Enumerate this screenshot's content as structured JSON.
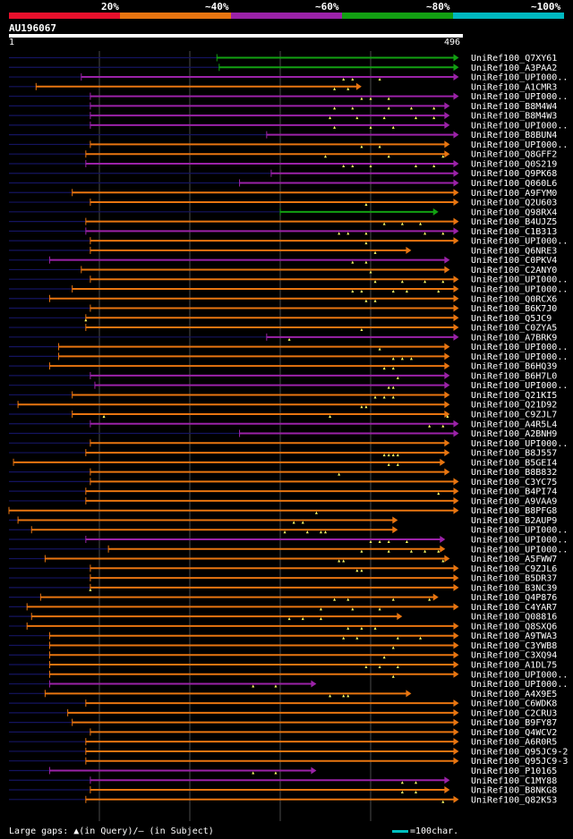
{
  "legend": {
    "labels": [
      "20%",
      "~40%",
      "~60%",
      "~80%",
      "~100%"
    ],
    "colors": [
      "#e8102c",
      "#e87510",
      "#9b22a8",
      "#12a012",
      "#00b8c0"
    ]
  },
  "query": {
    "name": "AU196067",
    "start": "1",
    "end": "496"
  },
  "colors": {
    "orange": "#e87510",
    "purple": "#9b22a8",
    "green": "#12a012",
    "navy": "#141460",
    "grid": "#4a4a4a",
    "gap": "#ffff66"
  },
  "hits": [
    {
      "label": "UniRef100_Q7XY61",
      "color": "green",
      "s": 0.46,
      "e": 0.995,
      "pstart": 0.46,
      "mid": 0.6,
      "dir": "r",
      "gaps": []
    },
    {
      "label": "UniRef100_A3PAA2",
      "color": "green",
      "s": 0.465,
      "e": 0.995,
      "pstart": 0.465,
      "mid": null,
      "dir": "r",
      "gaps": []
    },
    {
      "label": "UniRef100_UPI000..",
      "color": "purple",
      "s": 0.16,
      "e": 0.995,
      "pstart": 0.0,
      "mid": null,
      "dir": "r",
      "gaps": [
        0.74,
        0.76,
        0.82
      ]
    },
    {
      "label": "UniRef100_A1CMR3",
      "color": "orange",
      "s": 0.06,
      "e": 0.78,
      "pstart": 0.06,
      "mid": null,
      "dir": "r",
      "gaps": [
        0.72,
        0.75
      ]
    },
    {
      "label": "UniRef100_UPI000..",
      "color": "purple",
      "s": 0.18,
      "e": 0.995,
      "pstart": 0.0,
      "mid": null,
      "dir": "r",
      "gaps": [
        0.78,
        0.8,
        0.84
      ]
    },
    {
      "label": "UniRef100_B8M4W4",
      "color": "purple",
      "s": 0.18,
      "e": 0.975,
      "pstart": 0.18,
      "mid": null,
      "dir": "r",
      "gaps": [
        0.72,
        0.76,
        0.84,
        0.89,
        0.94
      ]
    },
    {
      "label": "UniRef100_B8M4W3",
      "color": "purple",
      "s": 0.18,
      "e": 0.975,
      "pstart": 0.18,
      "mid": null,
      "dir": "r",
      "gaps": [
        0.71,
        0.77,
        0.83,
        0.9,
        0.94
      ]
    },
    {
      "label": "UniRef100_UPI000..",
      "color": "purple",
      "s": 0.18,
      "e": 0.975,
      "pstart": 0.18,
      "mid": null,
      "dir": "r",
      "gaps": [
        0.72,
        0.8,
        0.85
      ]
    },
    {
      "label": "UniRef100_B8BUN4",
      "color": "purple",
      "s": 0.57,
      "e": 0.995,
      "pstart": 0.57,
      "mid": null,
      "dir": "r",
      "gaps": []
    },
    {
      "label": "UniRef100_UPI000..",
      "color": "orange",
      "s": 0.18,
      "e": 0.975,
      "pstart": 0.0,
      "mid": null,
      "dir": "r",
      "gaps": [
        0.78,
        0.82
      ]
    },
    {
      "label": "UniRef100_Q8GFF2",
      "color": "orange",
      "s": 0.17,
      "e": 0.975,
      "pstart": 0.0,
      "mid": null,
      "dir": "r",
      "gaps": [
        0.7,
        0.84,
        0.96
      ]
    },
    {
      "label": "UniRef100_Q0S219",
      "color": "purple",
      "s": 0.17,
      "e": 0.995,
      "pstart": 0.0,
      "mid": null,
      "dir": "r",
      "gaps": [
        0.74,
        0.76,
        0.8,
        0.9,
        0.94
      ]
    },
    {
      "label": "UniRef100_Q9PK68",
      "color": "purple",
      "s": 0.58,
      "e": 0.995,
      "pstart": 0.58,
      "mid": null,
      "dir": "r",
      "gaps": []
    },
    {
      "label": "UniRef100_Q060L6",
      "color": "purple",
      "s": 0.51,
      "e": 0.995,
      "pstart": 0.51,
      "mid": null,
      "dir": "r",
      "gaps": []
    },
    {
      "label": "UniRef100_A9FYM0",
      "color": "orange",
      "s": 0.14,
      "e": 0.995,
      "pstart": 0.14,
      "mid": null,
      "dir": "r",
      "gaps": []
    },
    {
      "label": "UniRef100_Q2U603",
      "color": "orange",
      "s": 0.18,
      "e": 0.995,
      "pstart": 0.0,
      "mid": null,
      "dir": "r",
      "gaps": [
        0.79
      ]
    },
    {
      "label": "UniRef100_Q98RX4",
      "color": "green",
      "s": 0.6,
      "e": 0.95,
      "pstart": 0.6,
      "mid": null,
      "dir": "r",
      "gaps": []
    },
    {
      "label": "UniRef100_B4UJZ5",
      "color": "orange",
      "s": 0.17,
      "e": 0.995,
      "pstart": 0.0,
      "mid": null,
      "dir": "r",
      "gaps": [
        0.83,
        0.87,
        0.91
      ]
    },
    {
      "label": "UniRef100_C1B313",
      "color": "purple",
      "s": 0.17,
      "e": 0.995,
      "pstart": 0.0,
      "mid": null,
      "dir": "r",
      "gaps": [
        0.73,
        0.75,
        0.79,
        0.92,
        0.96
      ]
    },
    {
      "label": "UniRef100_UPI000..",
      "color": "orange",
      "s": 0.18,
      "e": 0.995,
      "pstart": 0.0,
      "mid": null,
      "dir": "r",
      "gaps": [
        0.79
      ]
    },
    {
      "label": "UniRef100_Q6NRE3",
      "color": "orange",
      "s": 0.18,
      "e": 0.89,
      "pstart": 0.0,
      "mid": null,
      "dir": "r",
      "gaps": [
        0.81
      ]
    },
    {
      "label": "UniRef100_C0PKV4",
      "color": "purple",
      "s": 0.09,
      "e": 0.975,
      "pstart": 0.09,
      "mid": null,
      "dir": "r",
      "gaps": [
        0.76,
        0.79
      ]
    },
    {
      "label": "UniRef100_C2ANY0",
      "color": "orange",
      "s": 0.16,
      "e": 0.975,
      "pstart": 0.0,
      "mid": null,
      "dir": "r",
      "gaps": [
        0.8
      ]
    },
    {
      "label": "UniRef100_UPI000..",
      "color": "orange",
      "s": 0.18,
      "e": 0.995,
      "pstart": 0.0,
      "mid": null,
      "dir": "r",
      "gaps": [
        0.81,
        0.87,
        0.92,
        0.96
      ]
    },
    {
      "label": "UniRef100_UPI000..",
      "color": "orange",
      "s": 0.14,
      "e": 0.995,
      "pstart": 0.0,
      "mid": null,
      "dir": "r",
      "gaps": [
        0.76,
        0.78,
        0.85,
        0.88,
        0.95
      ]
    },
    {
      "label": "UniRef100_Q0RCX6",
      "color": "orange",
      "s": 0.09,
      "e": 0.995,
      "pstart": 0.0,
      "mid": null,
      "dir": "r",
      "gaps": [
        0.79,
        0.81
      ]
    },
    {
      "label": "UniRef100_B6K7J0",
      "color": "orange",
      "s": 0.18,
      "e": 0.995,
      "pstart": 0.0,
      "mid": null,
      "dir": "r",
      "gaps": []
    },
    {
      "label": "UniRef100_Q5JC9",
      "color": "orange",
      "s": 0.17,
      "e": 0.995,
      "pstart": 0.0,
      "mid": null,
      "dir": "r",
      "gaps": [
        0.17
      ]
    },
    {
      "label": "UniRef100_C0ZYA5",
      "color": "orange",
      "s": 0.17,
      "e": 0.995,
      "pstart": 0.0,
      "mid": null,
      "dir": "r",
      "gaps": [
        0.78
      ]
    },
    {
      "label": "UniRef100_A7BRK9",
      "color": "purple",
      "s": 0.57,
      "e": 0.995,
      "pstart": 0.57,
      "mid": null,
      "dir": "r",
      "gaps": [
        0.62
      ]
    },
    {
      "label": "UniRef100_UPI000..",
      "color": "orange",
      "s": 0.11,
      "e": 0.975,
      "pstart": 0.0,
      "mid": null,
      "dir": "r",
      "gaps": [
        0.82
      ]
    },
    {
      "label": "UniRef100_UPI000..",
      "color": "orange",
      "s": 0.11,
      "e": 0.975,
      "pstart": 0.0,
      "mid": null,
      "dir": "r",
      "gaps": [
        0.85,
        0.87,
        0.89
      ]
    },
    {
      "label": "UniRef100_B6HQ39",
      "color": "orange",
      "s": 0.09,
      "e": 0.975,
      "pstart": 0.0,
      "mid": null,
      "dir": "r",
      "gaps": [
        0.83,
        0.85
      ]
    },
    {
      "label": "UniRef100_B6H7L0",
      "color": "purple",
      "s": 0.18,
      "e": 0.975,
      "pstart": 0.0,
      "mid": null,
      "dir": "r",
      "gaps": [
        0.86
      ]
    },
    {
      "label": "UniRef100_UPI000..",
      "color": "purple",
      "s": 0.19,
      "e": 0.975,
      "pstart": 0.0,
      "mid": null,
      "dir": "r",
      "gaps": [
        0.84,
        0.85
      ]
    },
    {
      "label": "UniRef100_Q21KI5",
      "color": "orange",
      "s": 0.14,
      "e": 0.975,
      "pstart": 0.0,
      "mid": null,
      "dir": "r",
      "gaps": [
        0.81,
        0.83,
        0.85
      ]
    },
    {
      "label": "UniRef100_Q21D92",
      "color": "orange",
      "s": 0.02,
      "e": 0.975,
      "pstart": 0.0,
      "mid": null,
      "dir": "r",
      "gaps": [
        0.78,
        0.79
      ]
    },
    {
      "label": "UniRef100_C9ZJL7",
      "color": "orange",
      "s": 0.14,
      "e": 0.975,
      "pstart": 0.0,
      "mid": null,
      "dir": "r",
      "gaps": [
        0.21,
        0.71,
        0.97
      ]
    },
    {
      "label": "UniRef100_A4R5L4",
      "color": "purple",
      "s": 0.18,
      "e": 0.995,
      "pstart": 0.0,
      "mid": null,
      "dir": "r",
      "gaps": [
        0.93,
        0.96
      ]
    },
    {
      "label": "UniRef100_A2BNH9",
      "color": "purple",
      "s": 0.51,
      "e": 0.995,
      "pstart": 0.51,
      "mid": null,
      "dir": "r",
      "gaps": []
    },
    {
      "label": "UniRef100_UPI000..",
      "color": "orange",
      "s": 0.18,
      "e": 0.975,
      "pstart": 0.0,
      "mid": null,
      "dir": "r",
      "gaps": []
    },
    {
      "label": "UniRef100_B8J557",
      "color": "orange",
      "s": 0.17,
      "e": 0.975,
      "pstart": 0.0,
      "mid": null,
      "dir": "r",
      "gaps": [
        0.83,
        0.84,
        0.85,
        0.86
      ]
    },
    {
      "label": "UniRef100_B5GEI4",
      "color": "orange",
      "s": 0.01,
      "e": 0.965,
      "pstart": 0.0,
      "mid": null,
      "dir": "r",
      "gaps": [
        0.84,
        0.86
      ]
    },
    {
      "label": "UniRef100_B8B832",
      "color": "orange",
      "s": 0.18,
      "e": 0.975,
      "pstart": 0.0,
      "mid": null,
      "dir": "r",
      "gaps": [
        0.73
      ]
    },
    {
      "label": "UniRef100_C3YC75",
      "color": "orange",
      "s": 0.18,
      "e": 0.995,
      "pstart": 0.0,
      "mid": null,
      "dir": "r",
      "gaps": []
    },
    {
      "label": "UniRef100_B4PI74",
      "color": "orange",
      "s": 0.17,
      "e": 0.995,
      "pstart": 0.0,
      "mid": null,
      "dir": "r",
      "gaps": [
        0.95
      ]
    },
    {
      "label": "UniRef100_A9VAA9",
      "color": "orange",
      "s": 0.17,
      "e": 0.995,
      "pstart": 0.0,
      "mid": null,
      "dir": "r",
      "gaps": []
    },
    {
      "label": "UniRef100_B8PFG8",
      "color": "orange",
      "s": 0.0,
      "e": 0.995,
      "pstart": 0.0,
      "mid": null,
      "dir": "r",
      "gaps": [
        0.68
      ]
    },
    {
      "label": "UniRef100_B2AUP9",
      "color": "orange",
      "s": 0.02,
      "e": 0.86,
      "pstart": 0.0,
      "mid": null,
      "dir": "r",
      "gaps": [
        0.63,
        0.65
      ]
    },
    {
      "label": "UniRef100_UPI000..",
      "color": "orange",
      "s": 0.05,
      "e": 0.86,
      "pstart": 0.0,
      "mid": null,
      "dir": "r",
      "gaps": [
        0.61,
        0.66,
        0.69,
        0.7
      ]
    },
    {
      "label": "UniRef100_UPI000..",
      "color": "purple",
      "s": 0.17,
      "e": 0.965,
      "pstart": 0.0,
      "mid": null,
      "dir": "r",
      "gaps": [
        0.8,
        0.82,
        0.84,
        0.88
      ]
    },
    {
      "label": "UniRef100_UPI000..",
      "color": "orange",
      "s": 0.22,
      "e": 0.965,
      "pstart": 0.0,
      "mid": null,
      "dir": "r",
      "gaps": [
        0.78,
        0.84,
        0.89,
        0.92,
        0.95
      ]
    },
    {
      "label": "UniRef100_A5FWW7",
      "color": "orange",
      "s": 0.08,
      "e": 0.975,
      "pstart": 0.0,
      "mid": null,
      "dir": "r",
      "gaps": [
        0.73,
        0.74,
        0.96
      ]
    },
    {
      "label": "UniRef100_C9ZJL6",
      "color": "orange",
      "s": 0.18,
      "e": 0.995,
      "pstart": 0.0,
      "mid": null,
      "dir": "r",
      "gaps": [
        0.77,
        0.78
      ]
    },
    {
      "label": "UniRef100_B5DR37",
      "color": "orange",
      "s": 0.18,
      "e": 0.995,
      "pstart": 0.0,
      "mid": null,
      "dir": "r",
      "gaps": []
    },
    {
      "label": "UniRef100_B3NC39",
      "color": "orange",
      "s": 0.18,
      "e": 0.995,
      "pstart": 0.0,
      "mid": null,
      "dir": "r",
      "gaps": [
        0.18
      ]
    },
    {
      "label": "UniRef100_Q4P876",
      "color": "orange",
      "s": 0.07,
      "e": 0.95,
      "pstart": 0.0,
      "mid": null,
      "dir": "r",
      "gaps": [
        0.72,
        0.75,
        0.85,
        0.93
      ]
    },
    {
      "label": "UniRef100_C4YAR7",
      "color": "orange",
      "s": 0.04,
      "e": 0.995,
      "pstart": 0.0,
      "mid": null,
      "dir": "r",
      "gaps": [
        0.69,
        0.76,
        0.82
      ]
    },
    {
      "label": "UniRef100_Q08816",
      "color": "orange",
      "s": 0.05,
      "e": 0.87,
      "pstart": 0.0,
      "mid": null,
      "dir": "r",
      "gaps": [
        0.62,
        0.65,
        0.69
      ]
    },
    {
      "label": "UniRef100_Q8SXQ6",
      "color": "orange",
      "s": 0.04,
      "e": 0.995,
      "pstart": 0.0,
      "mid": null,
      "dir": "r",
      "gaps": [
        0.75,
        0.78,
        0.81
      ]
    },
    {
      "label": "UniRef100_A9TWA3",
      "color": "orange",
      "s": 0.09,
      "e": 0.995,
      "pstart": 0.0,
      "mid": null,
      "dir": "r",
      "gaps": [
        0.74,
        0.77,
        0.86,
        0.91
      ]
    },
    {
      "label": "UniRef100_C3YWB8",
      "color": "orange",
      "s": 0.09,
      "e": 0.995,
      "pstart": 0.0,
      "mid": null,
      "dir": "r",
      "gaps": [
        0.85
      ]
    },
    {
      "label": "UniRef100_C3XQ94",
      "color": "orange",
      "s": 0.09,
      "e": 0.995,
      "pstart": 0.0,
      "mid": null,
      "dir": "r",
      "gaps": [
        0.83
      ]
    },
    {
      "label": "UniRef100_A1DL75",
      "color": "orange",
      "s": 0.09,
      "e": 0.995,
      "pstart": 0.0,
      "mid": null,
      "dir": "r",
      "gaps": [
        0.79,
        0.82,
        0.86
      ]
    },
    {
      "label": "UniRef100_UPI000..",
      "color": "orange",
      "s": 0.09,
      "e": 0.995,
      "pstart": 0.0,
      "mid": null,
      "dir": "r",
      "gaps": [
        0.85
      ]
    },
    {
      "label": "UniRef100_UPI000..",
      "color": "purple",
      "s": 0.09,
      "e": 0.68,
      "pstart": 0.0,
      "mid": null,
      "dir": "r",
      "gaps": [
        0.54,
        0.59
      ]
    },
    {
      "label": "UniRef100_A4X9E5",
      "color": "orange",
      "s": 0.08,
      "e": 0.89,
      "pstart": 0.0,
      "mid": null,
      "dir": "r",
      "gaps": [
        0.71,
        0.74,
        0.75
      ]
    },
    {
      "label": "UniRef100_C6WDK8",
      "color": "orange",
      "s": 0.17,
      "e": 0.995,
      "pstart": 0.0,
      "mid": null,
      "dir": "r",
      "gaps": []
    },
    {
      "label": "UniRef100_C2CRU3",
      "color": "orange",
      "s": 0.13,
      "e": 0.995,
      "pstart": 0.0,
      "mid": null,
      "dir": "r",
      "gaps": []
    },
    {
      "label": "UniRef100_B9FY87",
      "color": "orange",
      "s": 0.14,
      "e": 0.995,
      "pstart": 0.0,
      "mid": null,
      "dir": "r",
      "gaps": []
    },
    {
      "label": "UniRef100_Q4WCV2",
      "color": "orange",
      "s": 0.18,
      "e": 0.995,
      "pstart": 0.0,
      "mid": null,
      "dir": "r",
      "gaps": []
    },
    {
      "label": "UniRef100_A6R0R5",
      "color": "orange",
      "s": 0.17,
      "e": 0.995,
      "pstart": 0.0,
      "mid": null,
      "dir": "r",
      "gaps": []
    },
    {
      "label": "UniRef100_Q95JC9-2",
      "color": "orange",
      "s": 0.17,
      "e": 0.995,
      "pstart": 0.0,
      "mid": null,
      "dir": "r",
      "gaps": []
    },
    {
      "label": "UniRef100_Q95JC9-3",
      "color": "orange",
      "s": 0.17,
      "e": 0.995,
      "pstart": 0.0,
      "mid": null,
      "dir": "r",
      "gaps": []
    },
    {
      "label": "UniRef100_P10165",
      "color": "purple",
      "s": 0.09,
      "e": 0.68,
      "pstart": 0.0,
      "mid": null,
      "dir": "r",
      "gaps": [
        0.54,
        0.59
      ]
    },
    {
      "label": "UniRef100_C1MY88",
      "color": "purple",
      "s": 0.18,
      "e": 0.975,
      "pstart": 0.0,
      "mid": null,
      "dir": "r",
      "gaps": [
        0.87,
        0.9
      ]
    },
    {
      "label": "UniRef100_B8NKG8",
      "color": "orange",
      "s": 0.18,
      "e": 0.975,
      "pstart": 0.0,
      "mid": null,
      "dir": "r",
      "gaps": [
        0.87,
        0.9
      ]
    },
    {
      "label": "UniRef100_Q82K53",
      "color": "orange",
      "s": 0.17,
      "e": 0.995,
      "pstart": 0.0,
      "mid": null,
      "dir": "r",
      "gaps": [
        0.96
      ]
    }
  ],
  "footer": {
    "left": "Large gaps: ▲(in Query)/– (in Subject)",
    "right": "=100char."
  }
}
